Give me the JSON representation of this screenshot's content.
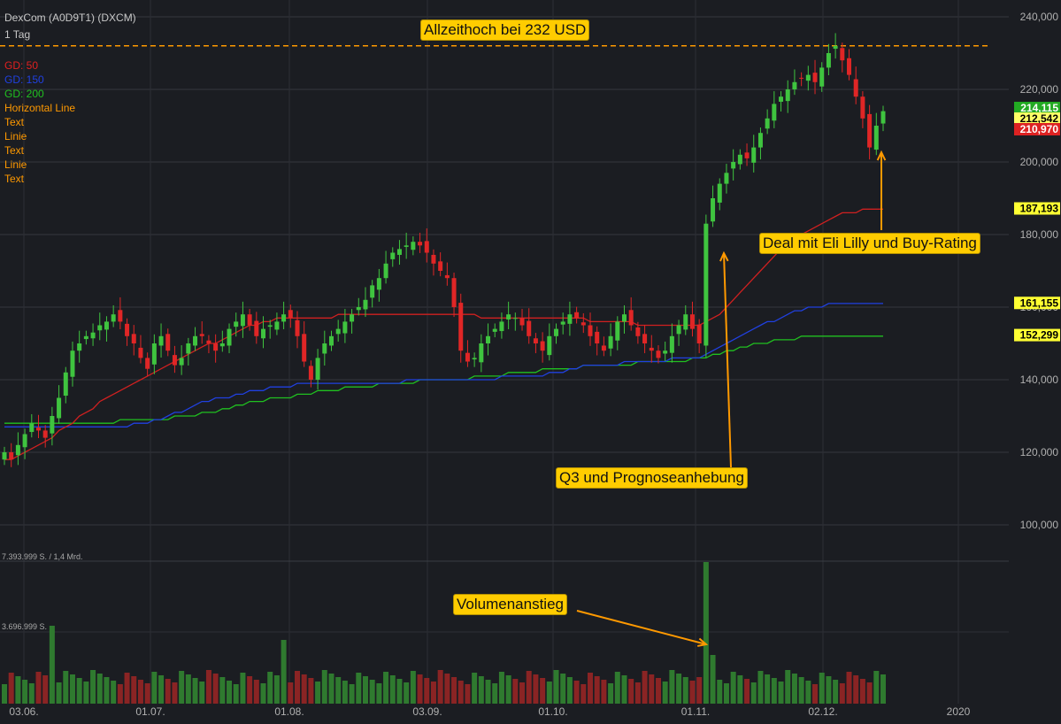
{
  "header": {
    "title": "DexCom (A0D9T1) (DXCM)",
    "period": "1 Tag"
  },
  "legend": [
    {
      "label": "GD: 50",
      "color": "#e02020"
    },
    {
      "label": "GD: 150",
      "color": "#2040e0"
    },
    {
      "label": "GD: 200",
      "color": "#20c020"
    },
    {
      "label": "Horizontal Line",
      "color": "#ff9900"
    },
    {
      "label": "Text",
      "color": "#ff9900"
    },
    {
      "label": "Linie",
      "color": "#ff9900"
    },
    {
      "label": "Text",
      "color": "#ff9900"
    },
    {
      "label": "Linie",
      "color": "#ff9900"
    },
    {
      "label": "Text",
      "color": "#ff9900"
    }
  ],
  "annotations": {
    "ath": "Allzeithoch bei 232 USD",
    "deal": "Deal mit Eli Lilly und Buy-Rating",
    "q3": "Q3 und Prognoseanhebung",
    "volume": "Volumenanstieg"
  },
  "volume_labels": {
    "max": "7.393.999 S. / 1,4 Mrd.",
    "mid": "3.696.999 S."
  },
  "chart_data": {
    "type": "candlestick",
    "price_axis": {
      "ticks": [
        240,
        220,
        200,
        180,
        160,
        140,
        120,
        100
      ],
      "tick_labels": [
        "240,000",
        "220,000",
        "200,000",
        "180,000",
        "160,000",
        "140,000",
        "120,000",
        "100,000"
      ]
    },
    "x_ticks": [
      "03.06.",
      "01.07.",
      "01.08.",
      "03.09.",
      "01.10.",
      "01.11.",
      "02.12.",
      "2020"
    ],
    "price_tags": [
      {
        "value": 214.115,
        "label": "214,115",
        "bg": "#22aa22",
        "fg": "#ffffff"
      },
      {
        "value": 212.542,
        "label": "212,542",
        "bg": "#ffff66",
        "fg": "#000000"
      },
      {
        "value": 210.97,
        "label": "210,970",
        "bg": "#dd2222",
        "fg": "#ffffff"
      },
      {
        "value": 187.193,
        "label": "187,193",
        "bg": "#ffff33",
        "fg": "#000000"
      },
      {
        "value": 161.155,
        "label": "161,155",
        "bg": "#ffff33",
        "fg": "#000000"
      },
      {
        "value": 152.299,
        "label": "152,299",
        "bg": "#ffff33",
        "fg": "#000000"
      }
    ],
    "horizontal_line": 232,
    "ohlc_closes": [
      120,
      118,
      122,
      125,
      128,
      126,
      124,
      130,
      135,
      142,
      148,
      150,
      152,
      153,
      155,
      156,
      158,
      156,
      152,
      150,
      146,
      143,
      150,
      152,
      148,
      144,
      146,
      150,
      152,
      152,
      150,
      148,
      150,
      154,
      156,
      158,
      155,
      152,
      154,
      155,
      156,
      158,
      157,
      152,
      145,
      140,
      146,
      150,
      152,
      154,
      156,
      158,
      160,
      162,
      166,
      168,
      172,
      175,
      176,
      177,
      178,
      177,
      175,
      172,
      170,
      168,
      160,
      148,
      145,
      146,
      150,
      152,
      154,
      156,
      158,
      157,
      155,
      152,
      150,
      148,
      152,
      154,
      156,
      158,
      157,
      155,
      152,
      150,
      148,
      152,
      156,
      158,
      155,
      152,
      150,
      148,
      146,
      148,
      152,
      155,
      158,
      154,
      150,
      183,
      190,
      194,
      197,
      200,
      202,
      201,
      204,
      208,
      212,
      216,
      218,
      220,
      222,
      223,
      224,
      222,
      226,
      230,
      232,
      228,
      224,
      218,
      212,
      204,
      210,
      214
    ],
    "sma50": [
      118,
      118,
      119,
      120,
      121,
      122,
      123,
      124,
      126,
      127,
      128,
      130,
      131,
      132,
      134,
      135,
      136,
      137,
      138,
      139,
      140,
      141,
      142,
      143,
      144,
      145,
      146,
      147,
      148,
      149,
      150,
      150,
      151,
      152,
      153,
      154,
      155,
      155,
      156,
      156,
      157,
      157,
      157,
      157,
      157,
      157,
      157,
      157,
      157,
      158,
      158,
      158,
      158,
      158,
      158,
      158,
      158,
      158,
      158,
      158,
      158,
      158,
      158,
      158,
      158,
      158,
      158,
      158,
      158,
      158,
      157,
      157,
      157,
      157,
      157,
      157,
      157,
      157,
      157,
      157,
      157,
      157,
      157,
      157,
      157,
      157,
      156,
      156,
      156,
      156,
      156,
      156,
      156,
      155,
      155,
      155,
      155,
      155,
      155,
      155,
      155,
      155,
      155,
      156,
      157,
      158,
      160,
      162,
      164,
      166,
      168,
      170,
      172,
      174,
      176,
      178,
      179,
      180,
      181,
      182,
      183,
      184,
      185,
      186,
      186,
      186,
      187,
      187,
      187,
      187
    ],
    "sma150": [
      127,
      127,
      127,
      127,
      127,
      127,
      127,
      127,
      127,
      127,
      127,
      127,
      127,
      127,
      127,
      127,
      127,
      127,
      127,
      128,
      128,
      128,
      129,
      129,
      130,
      131,
      131,
      132,
      133,
      134,
      134,
      135,
      135,
      135,
      136,
      136,
      137,
      137,
      137,
      138,
      138,
      138,
      138,
      139,
      139,
      139,
      139,
      139,
      139,
      139,
      139,
      139,
      139,
      139,
      139,
      139,
      139,
      139,
      139,
      140,
      140,
      140,
      140,
      140,
      140,
      140,
      140,
      140,
      140,
      140,
      140,
      140,
      140,
      141,
      141,
      141,
      141,
      141,
      141,
      141,
      142,
      142,
      142,
      143,
      143,
      144,
      144,
      144,
      144,
      144,
      144,
      145,
      145,
      145,
      145,
      145,
      145,
      145,
      146,
      146,
      146,
      146,
      146,
      147,
      148,
      149,
      150,
      151,
      152,
      153,
      154,
      155,
      156,
      156,
      157,
      158,
      159,
      159,
      160,
      160,
      160,
      161,
      161,
      161,
      161,
      161,
      161,
      161,
      161,
      161
    ],
    "sma200": [
      128,
      128,
      128,
      128,
      128,
      128,
      128,
      128,
      128,
      128,
      128,
      128,
      128,
      128,
      128,
      128,
      128,
      129,
      129,
      129,
      129,
      129,
      129,
      129,
      129,
      130,
      130,
      130,
      130,
      131,
      131,
      131,
      132,
      132,
      133,
      133,
      134,
      134,
      134,
      135,
      135,
      135,
      135,
      136,
      136,
      136,
      137,
      137,
      137,
      137,
      138,
      138,
      138,
      138,
      138,
      139,
      139,
      139,
      139,
      139,
      139,
      140,
      140,
      140,
      140,
      140,
      140,
      140,
      140,
      141,
      141,
      141,
      141,
      141,
      142,
      142,
      142,
      142,
      142,
      143,
      143,
      143,
      143,
      143,
      143,
      144,
      144,
      144,
      144,
      144,
      144,
      144,
      144,
      145,
      145,
      145,
      145,
      145,
      145,
      145,
      145,
      146,
      146,
      146,
      147,
      147,
      148,
      148,
      149,
      149,
      150,
      150,
      150,
      151,
      151,
      151,
      151,
      152,
      152,
      152,
      152,
      152,
      152,
      152,
      152,
      152,
      152,
      152,
      152,
      152
    ],
    "volume_axis_max": 7393999
  }
}
